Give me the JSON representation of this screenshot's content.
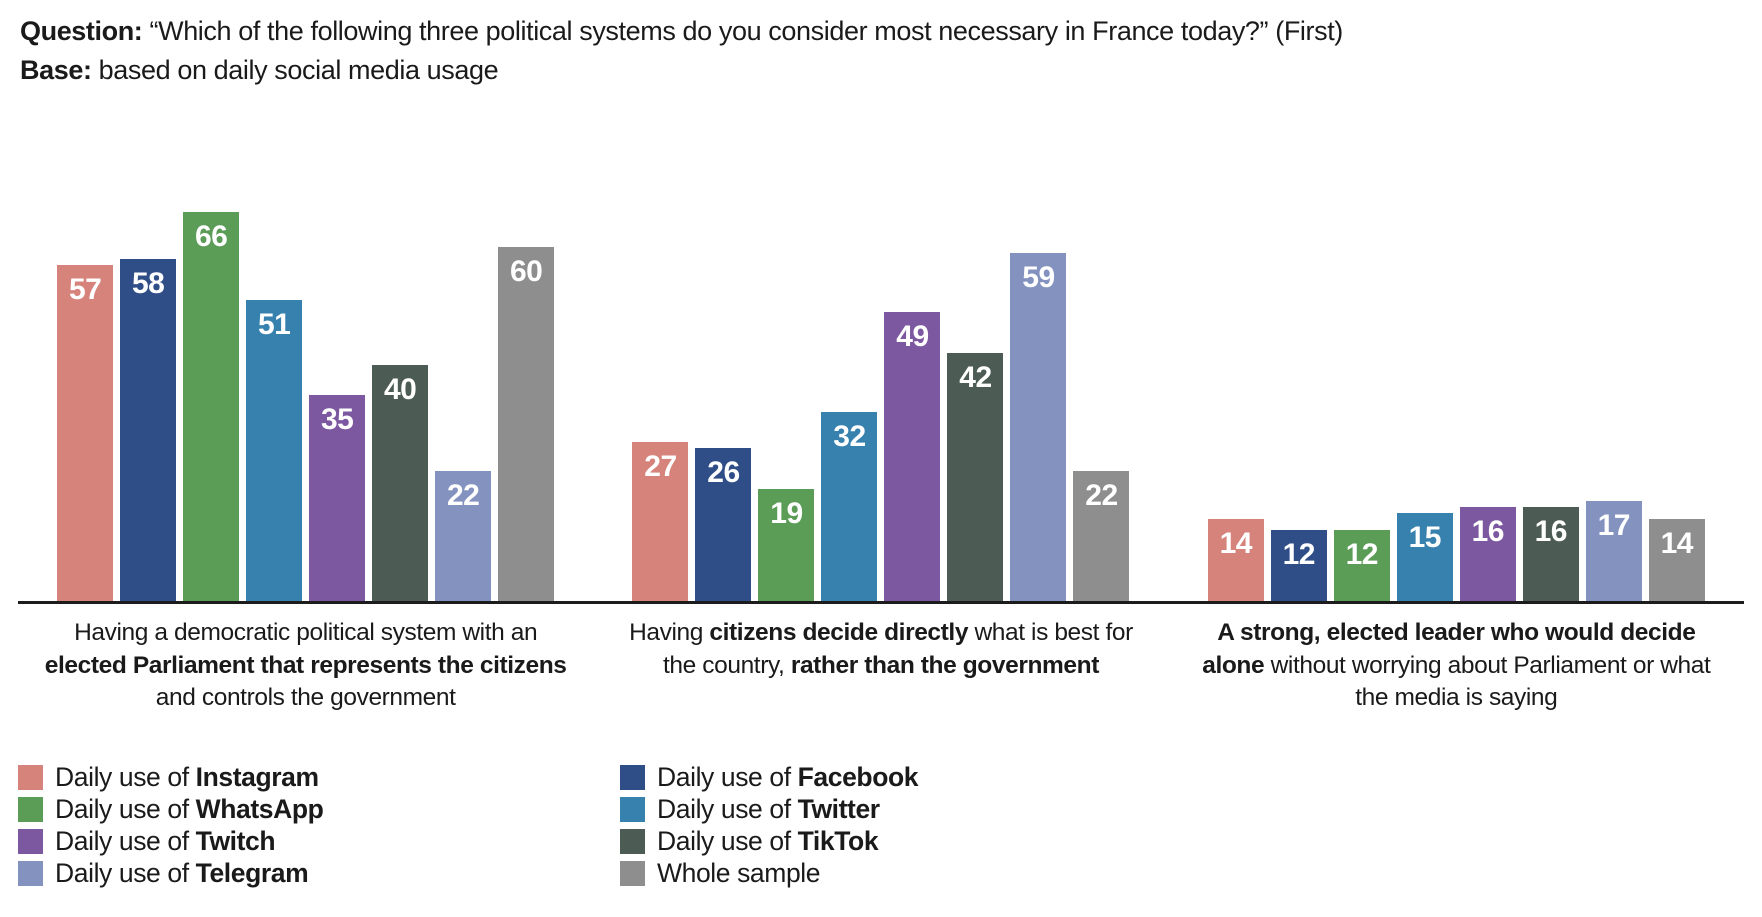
{
  "header": {
    "question_label": "Question:",
    "question_text": "“Which of the following three political systems do you consider most necessary in France today?” (First)",
    "base_label": "Base:",
    "base_text": "based on daily social media usage"
  },
  "chart_data": {
    "type": "bar",
    "title": "Which of the following three political systems do you consider most necessary in France today? (First)",
    "subtitle": "Base: based on daily social media usage",
    "ylabel": "",
    "xlabel": "",
    "ylim": [
      0,
      70
    ],
    "grid": false,
    "value_labels": "white bold numbers inside top of each bar",
    "legend_position": "bottom-left, two columns",
    "categories": [
      "Having a democratic political system with an elected Parliament that represents the citizens and controls the government",
      "Having citizens decide directly what is best for the country, rather than the government",
      "A strong, elected leader who would decide alone without worrying about Parliament or what the media is saying"
    ],
    "category_lines": [
      [
        [
          {
            "text": "Having a democratic political system with an",
            "bold": false
          }
        ],
        [
          {
            "text": "elected Parliament that represents the citizens",
            "bold": true
          }
        ],
        [
          {
            "text": "and controls the government",
            "bold": false
          }
        ]
      ],
      [
        [
          {
            "text": "Having ",
            "bold": false
          },
          {
            "text": "citizens decide directly",
            "bold": true
          },
          {
            "text": " what is best for",
            "bold": false
          }
        ],
        [
          {
            "text": "the country, ",
            "bold": false
          },
          {
            "text": "rather than the government",
            "bold": true
          }
        ]
      ],
      [
        [
          {
            "text": "A strong, elected leader who would decide",
            "bold": true
          }
        ],
        [
          {
            "text": "alone",
            "bold": true
          },
          {
            "text": " without worrying about Parliament or what",
            "bold": false
          }
        ],
        [
          {
            "text": "the media is saying",
            "bold": false
          }
        ]
      ]
    ],
    "series": [
      {
        "name": "Daily use of Instagram",
        "color": "#D5837B",
        "values": [
          57,
          27,
          14
        ]
      },
      {
        "name": "Daily use of Facebook",
        "color": "#2F4E87",
        "values": [
          58,
          26,
          12
        ]
      },
      {
        "name": "Daily use of WhatsApp",
        "color": "#5B9C57",
        "values": [
          66,
          19,
          12
        ]
      },
      {
        "name": "Daily use of Twitter",
        "color": "#3781AE",
        "values": [
          51,
          32,
          15
        ]
      },
      {
        "name": "Daily use of Twitch",
        "color": "#7C58A1",
        "values": [
          35,
          49,
          16
        ]
      },
      {
        "name": "Daily use of TikTok",
        "color": "#4C5B54",
        "values": [
          40,
          42,
          16
        ]
      },
      {
        "name": "Daily use of Telegram",
        "color": "#8492C0",
        "values": [
          22,
          59,
          17
        ]
      },
      {
        "name": "Whole sample",
        "color": "#8E8E8E",
        "values": [
          60,
          22,
          14
        ]
      }
    ]
  },
  "legend": {
    "columns": [
      [
        {
          "prefix": "Daily use of ",
          "name": "Instagram",
          "bold_name": true,
          "color": "#D5837B"
        },
        {
          "prefix": "Daily use of ",
          "name": "WhatsApp",
          "bold_name": true,
          "color": "#5B9C57"
        },
        {
          "prefix": "Daily use of ",
          "name": "Twitch",
          "bold_name": true,
          "color": "#7C58A1"
        },
        {
          "prefix": "Daily use of ",
          "name": "Telegram",
          "bold_name": true,
          "color": "#8492C0"
        }
      ],
      [
        {
          "prefix": "Daily use of ",
          "name": "Facebook",
          "bold_name": true,
          "color": "#2F4E87"
        },
        {
          "prefix": "Daily use of ",
          "name": "Twitter",
          "bold_name": true,
          "color": "#3781AE"
        },
        {
          "prefix": "Daily use of ",
          "name": "TikTok",
          "bold_name": true,
          "color": "#4C5B54"
        },
        {
          "prefix": "",
          "name": "Whole sample",
          "bold_name": false,
          "color": "#8E8E8E"
        }
      ]
    ]
  }
}
